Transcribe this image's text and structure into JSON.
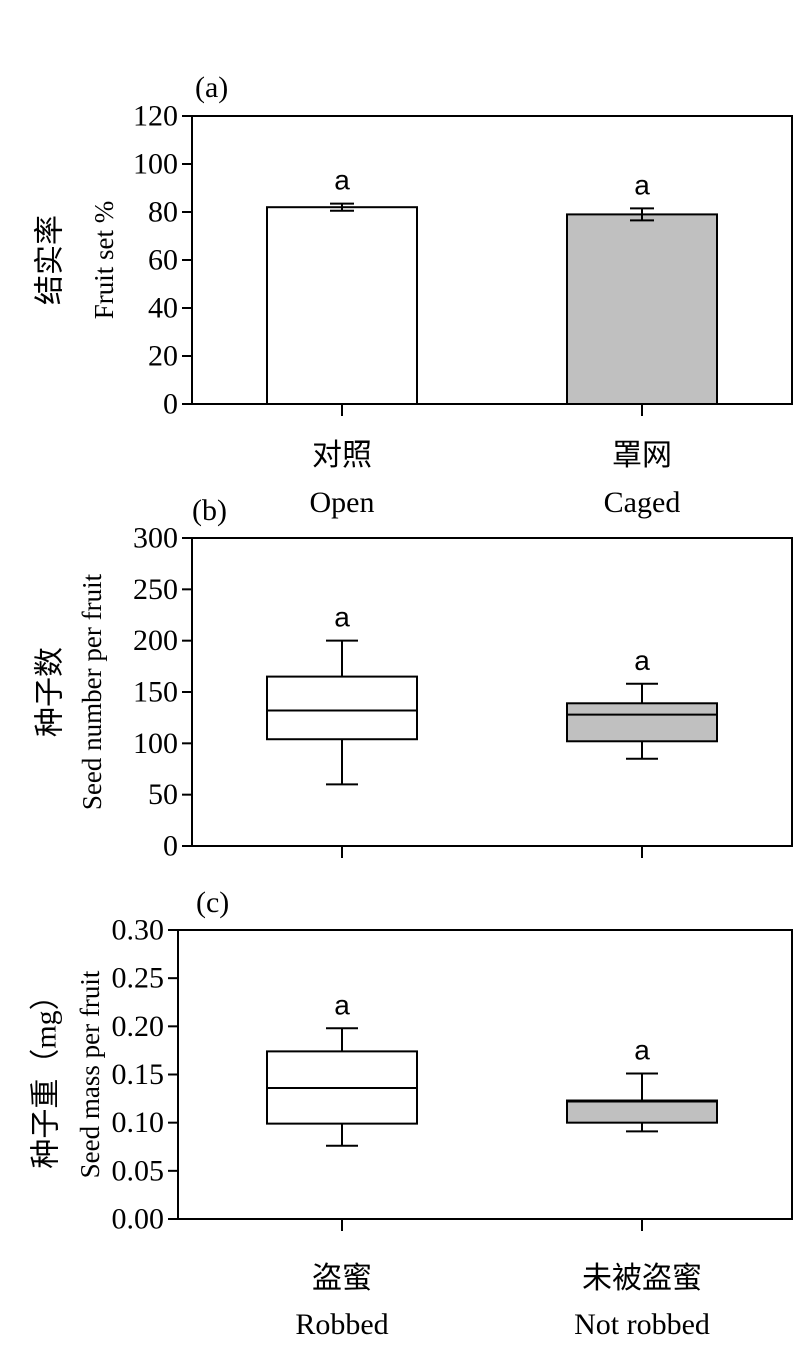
{
  "chart_data": [
    {
      "type": "bar",
      "panel_label": "(a)",
      "ylabel_cn": "结实率",
      "ylabel_en": "Fruit set %",
      "ylim": [
        0,
        120
      ],
      "yticks": [
        0,
        20,
        40,
        60,
        80,
        100,
        120
      ],
      "ytick_labels": [
        "0",
        "20",
        "40",
        "60",
        "80",
        "100",
        "120"
      ],
      "categories": [
        {
          "cn": "对照",
          "en": "Open"
        },
        {
          "cn": "罩网",
          "en": "Caged"
        }
      ],
      "values": [
        82,
        79
      ],
      "errors": [
        1.5,
        2.5
      ],
      "letters": [
        "a",
        "a"
      ],
      "fill_colors": [
        "#ffffff",
        "#c0c0c0"
      ],
      "grid": false
    },
    {
      "type": "box",
      "panel_label": "(b)",
      "ylabel_cn": "种子数",
      "ylabel_en": "Seed number per fruit",
      "ylim": [
        0,
        300
      ],
      "yticks": [
        0,
        50,
        100,
        150,
        200,
        250,
        300
      ],
      "ytick_labels": [
        "0",
        "50",
        "100",
        "150",
        "200",
        "250",
        "300"
      ],
      "boxes": [
        {
          "whisker_low": 60,
          "q1": 104,
          "median": 132,
          "q3": 165,
          "whisker_high": 200
        },
        {
          "whisker_low": 85,
          "q1": 102,
          "median": 128,
          "q3": 139,
          "whisker_high": 158
        }
      ],
      "letters": [
        "a",
        "a"
      ],
      "fill_colors": [
        "#ffffff",
        "#c0c0c0"
      ],
      "grid": false
    },
    {
      "type": "box",
      "panel_label": "(c)",
      "ylabel_cn": "种子重（mg）",
      "ylabel_en": "Seed mass per fruit",
      "ylim": [
        0,
        0.3
      ],
      "yticks": [
        0,
        0.05,
        0.1,
        0.15,
        0.2,
        0.25,
        0.3
      ],
      "ytick_labels": [
        "0.00",
        "0.05",
        "0.10",
        "0.15",
        "0.20",
        "0.25",
        "0.30"
      ],
      "categories": [
        {
          "cn": "盗蜜",
          "en": "Robbed"
        },
        {
          "cn": "未被盗蜜",
          "en": "Not robbed"
        }
      ],
      "boxes": [
        {
          "whisker_low": 0.076,
          "q1": 0.099,
          "median": 0.136,
          "q3": 0.174,
          "whisker_high": 0.198
        },
        {
          "whisker_low": 0.091,
          "q1": 0.1,
          "median": 0.122,
          "q3": 0.123,
          "whisker_high": 0.151
        }
      ],
      "letters": [
        "a",
        "a"
      ],
      "fill_colors": [
        "#ffffff",
        "#c0c0c0"
      ],
      "grid": false
    }
  ]
}
